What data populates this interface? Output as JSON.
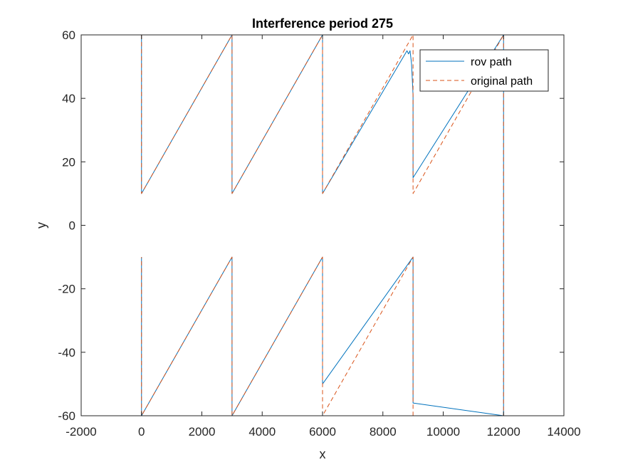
{
  "chart_data": {
    "type": "line",
    "title": "Interference period 275",
    "xlabel": "x",
    "ylabel": "y",
    "xlim": [
      -2000,
      14000
    ],
    "ylim": [
      -60,
      60
    ],
    "xticks": [
      -2000,
      0,
      2000,
      4000,
      6000,
      8000,
      10000,
      12000,
      14000
    ],
    "yticks": [
      -60,
      -40,
      -20,
      0,
      20,
      40,
      60
    ],
    "xtick_labels": [
      "-2000",
      "0",
      "2000",
      "4000",
      "6000",
      "8000",
      "10000",
      "12000",
      "14000"
    ],
    "ytick_labels": [
      "-60",
      "-40",
      "-20",
      "0",
      "20",
      "40",
      "60"
    ],
    "grid": false,
    "legend": {
      "placement": "top-right",
      "entries": [
        "rov path",
        "original path"
      ]
    },
    "series": [
      {
        "name": "rov path",
        "color": "#0072BD",
        "dash": "solid",
        "x": [
          0,
          0,
          0,
          3000,
          3000,
          3000,
          6000,
          6000,
          6000,
          8800,
          8850,
          8900,
          8950,
          9000,
          9000,
          9000,
          12000,
          12000,
          12000,
          12000,
          9000,
          9000,
          9000,
          6000,
          6000,
          6000,
          3000,
          3000,
          3000,
          0,
          0,
          0
        ],
        "y": [
          60,
          10,
          10,
          60,
          10,
          10,
          60,
          10,
          10,
          55,
          54,
          55,
          51,
          41,
          15,
          15,
          60,
          -60,
          -60,
          -60,
          -56,
          -10,
          -10,
          -50,
          -10,
          -10,
          -60,
          -10,
          -10,
          -60,
          -10,
          -10
        ]
      },
      {
        "name": "original path",
        "color": "#D95319",
        "dash": "dashed",
        "x": [
          0,
          0,
          0,
          3000,
          3000,
          3000,
          6000,
          6000,
          6000,
          9000,
          9000,
          9000,
          12000,
          12000,
          12000,
          12000,
          9000,
          9000,
          9000,
          6000,
          6000,
          6000,
          3000,
          3000,
          3000,
          0,
          0,
          0
        ],
        "y": [
          60,
          10,
          10,
          60,
          10,
          10,
          60,
          10,
          10,
          60,
          10,
          10,
          60,
          -60,
          -60,
          -60,
          -60,
          -10,
          -10,
          -60,
          -10,
          -10,
          -60,
          -10,
          -10,
          -60,
          -10,
          -10
        ]
      }
    ]
  }
}
